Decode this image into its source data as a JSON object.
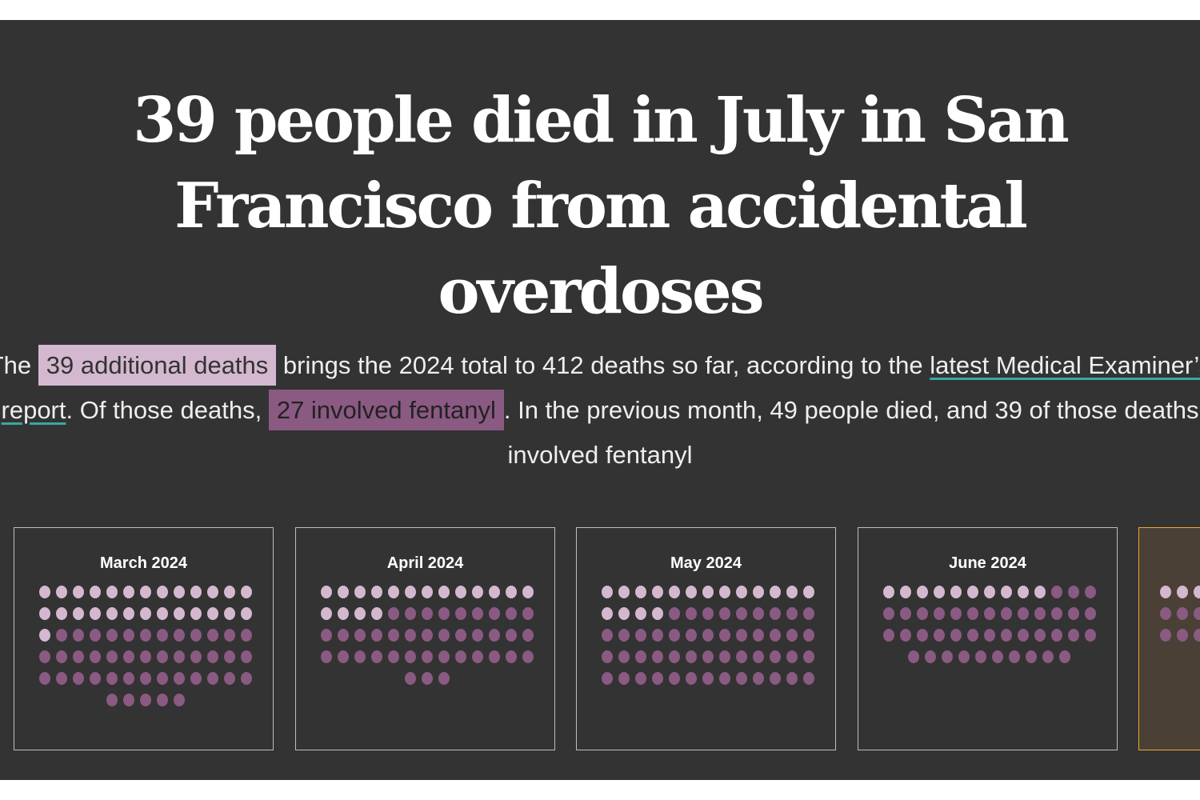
{
  "headline": [
    "39 people died in July in San",
    "Francisco from accidental",
    "overdoses"
  ],
  "lede": {
    "pre": "The ",
    "highlight_total": "39 additional deaths",
    "mid1": " brings the 2024 total to 412 deaths so far, according to the ",
    "link": "latest Medical Examiner’s report",
    "mid2": ". Of those deaths, ",
    "highlight_fentanyl": "27 involved fentanyl",
    "post": ". In the previous month, 49 people died, and 39 of those deaths involved fentanyl"
  },
  "colors": {
    "background": "#333333",
    "non_fentanyl": "#d4b8d0",
    "fentanyl": "#8a5a83",
    "current_border": "#f0a830",
    "current_bg": "#4a4036"
  },
  "months": [
    {
      "label": "March 2024",
      "total": 70,
      "fentanyl": 43
    },
    {
      "label": "April 2024",
      "total": 55,
      "fentanyl": 38
    },
    {
      "label": "May 2024",
      "total": 65,
      "fentanyl": 48
    },
    {
      "label": "June 2024",
      "total": 49,
      "fentanyl": 39
    },
    {
      "label": "",
      "total": 39,
      "fentanyl": 27,
      "current": true
    }
  ]
}
